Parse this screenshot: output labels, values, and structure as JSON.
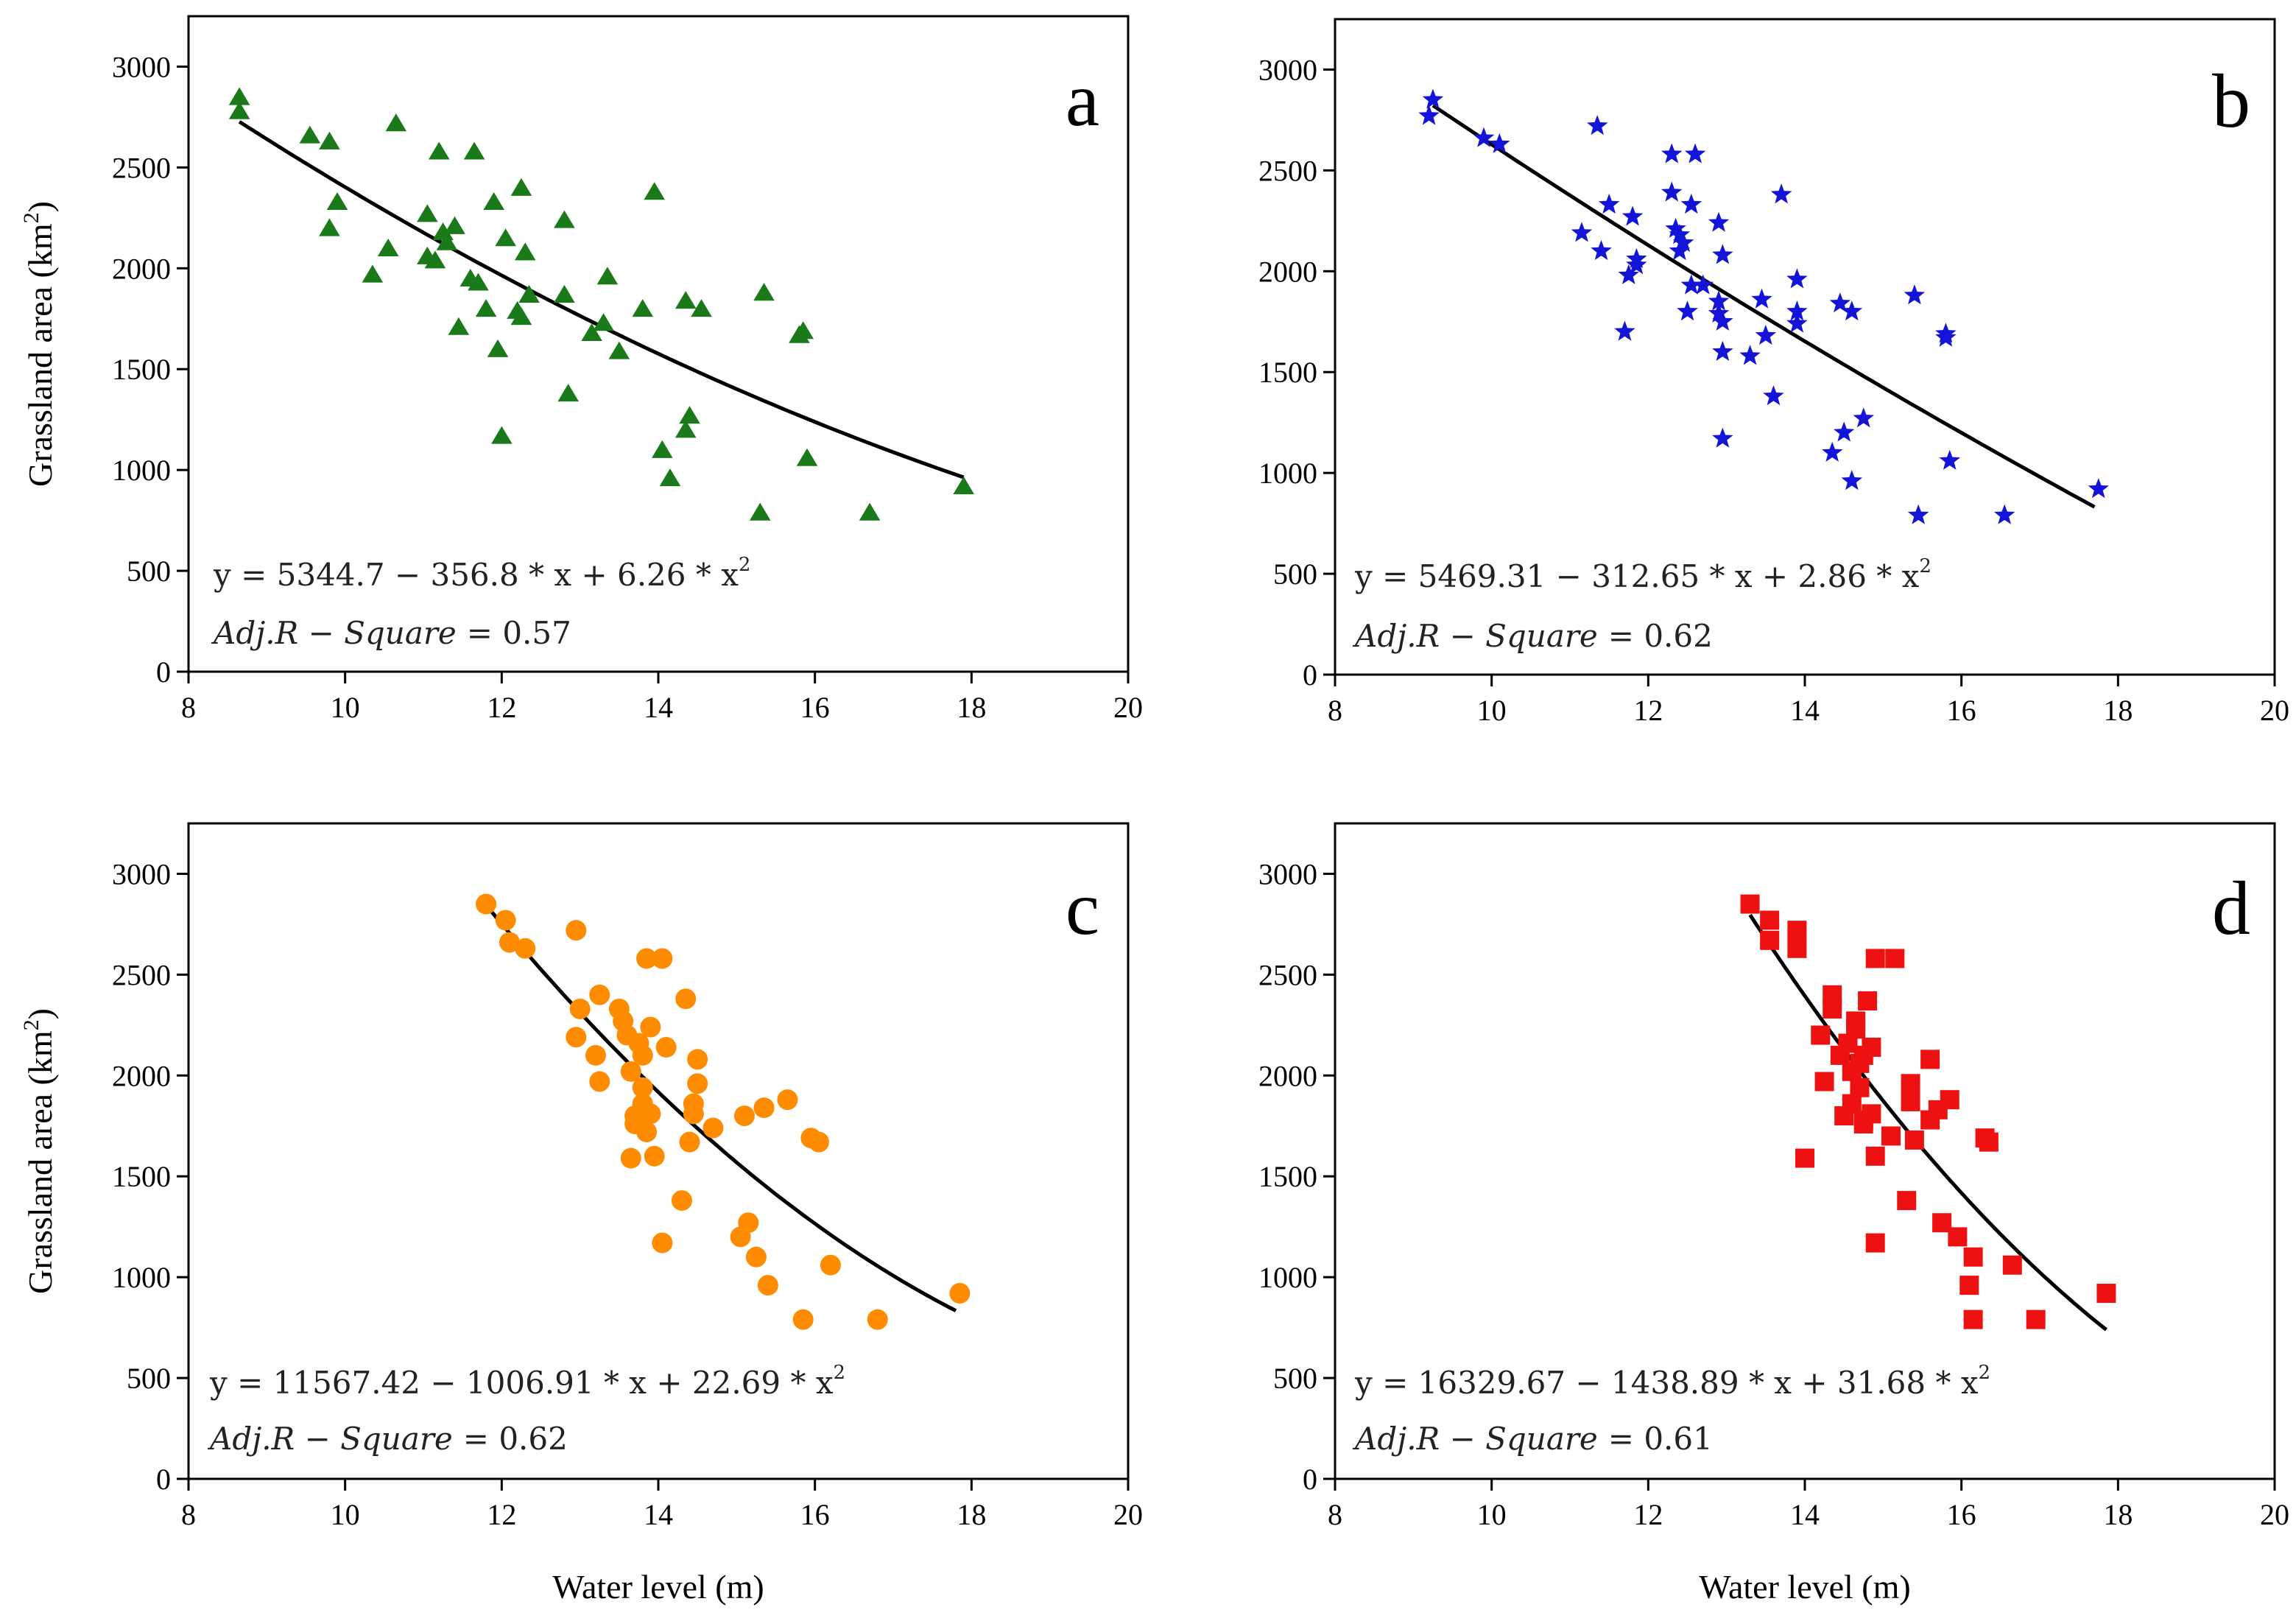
{
  "figure": {
    "y_axis_title": "Grassland area (km",
    "y_axis_title_sup": "2",
    "y_axis_title_close": ")",
    "x_axis_title": "Water level (m)"
  },
  "chart_data": [
    {
      "type": "scatter",
      "panel": "a",
      "marker": "triangle",
      "color": "#1a7a1a",
      "xlim": [
        8,
        20
      ],
      "ylim": [
        0,
        3250
      ],
      "xticks": [
        "8",
        "10",
        "12",
        "14",
        "16",
        "18",
        "20"
      ],
      "yticks": [
        "0",
        "500",
        "1000",
        "1500",
        "2000",
        "2500",
        "3000"
      ],
      "xlabel": "Water level (m)",
      "ylabel": "Grassland area (km2)",
      "equation": "y = 5344.7 − 356.8 * x + 6.26 * x",
      "equation_sup": "2",
      "adj_r2_label": "Adj.R − Square",
      "adj_r2_value": "= 0.57",
      "fit": {
        "a": 5344.7,
        "b": -356.8,
        "c": 6.26,
        "x_range": [
          8.65,
          17.9
        ]
      },
      "points": [
        [
          8.65,
          2850
        ],
        [
          8.65,
          2780
        ],
        [
          9.55,
          2660
        ],
        [
          9.8,
          2630
        ],
        [
          9.8,
          2200
        ],
        [
          9.9,
          2330
        ],
        [
          10.35,
          1970
        ],
        [
          10.55,
          2100
        ],
        [
          10.65,
          2720
        ],
        [
          11.05,
          2270
        ],
        [
          11.05,
          2060
        ],
        [
          11.15,
          2040
        ],
        [
          11.2,
          2580
        ],
        [
          11.25,
          2180
        ],
        [
          11.3,
          2130
        ],
        [
          11.4,
          2210
        ],
        [
          11.45,
          1710
        ],
        [
          11.6,
          1950
        ],
        [
          11.65,
          2580
        ],
        [
          11.7,
          1930
        ],
        [
          11.8,
          1800
        ],
        [
          11.9,
          2330
        ],
        [
          11.95,
          1600
        ],
        [
          12.0,
          1170
        ],
        [
          12.05,
          2150
        ],
        [
          12.2,
          1790
        ],
        [
          12.25,
          2400
        ],
        [
          12.25,
          1760
        ],
        [
          12.3,
          2080
        ],
        [
          12.35,
          1870
        ],
        [
          12.8,
          2240
        ],
        [
          12.8,
          1870
        ],
        [
          12.85,
          1380
        ],
        [
          13.15,
          1680
        ],
        [
          13.3,
          1730
        ],
        [
          13.35,
          1960
        ],
        [
          13.5,
          1590
        ],
        [
          13.8,
          1800
        ],
        [
          13.95,
          2380
        ],
        [
          14.05,
          1100
        ],
        [
          14.15,
          960
        ],
        [
          14.35,
          1840
        ],
        [
          14.35,
          1200
        ],
        [
          14.4,
          1270
        ],
        [
          14.55,
          1800
        ],
        [
          15.35,
          1880
        ],
        [
          15.3,
          790
        ],
        [
          15.8,
          1670
        ],
        [
          15.85,
          1690
        ],
        [
          15.9,
          1060
        ],
        [
          16.7,
          790
        ],
        [
          17.9,
          920
        ]
      ]
    },
    {
      "type": "scatter",
      "panel": "b",
      "marker": "star",
      "color": "#1414d8",
      "xlim": [
        8,
        20
      ],
      "ylim": [
        0,
        3250
      ],
      "xticks": [
        "8",
        "10",
        "12",
        "14",
        "16",
        "18",
        "20"
      ],
      "yticks": [
        "0",
        "500",
        "1000",
        "1500",
        "2000",
        "2500",
        "3000"
      ],
      "xlabel": "Water level (m)",
      "ylabel": "Grassland area (km2)",
      "equation": "y = 5469.31 − 312.65 * x + 2.86 * x",
      "equation_sup": "2",
      "adj_r2_label": "Adj.R − Square",
      "adj_r2_value": "= 0.62",
      "fit": {
        "a": 5469.31,
        "b": -312.65,
        "c": 2.86,
        "x_range": [
          9.25,
          17.7
        ]
      },
      "points": [
        [
          9.25,
          2850
        ],
        [
          9.2,
          2770
        ],
        [
          9.9,
          2660
        ],
        [
          10.1,
          2630
        ],
        [
          11.15,
          2190
        ],
        [
          11.35,
          2720
        ],
        [
          11.4,
          2100
        ],
        [
          11.5,
          2330
        ],
        [
          11.7,
          1700
        ],
        [
          11.75,
          1980
        ],
        [
          11.8,
          2270
        ],
        [
          11.85,
          2030
        ],
        [
          11.85,
          2060
        ],
        [
          12.3,
          2580
        ],
        [
          12.3,
          2390
        ],
        [
          12.35,
          2210
        ],
        [
          12.4,
          2180
        ],
        [
          12.4,
          2100
        ],
        [
          12.45,
          2140
        ],
        [
          12.5,
          1800
        ],
        [
          12.55,
          2330
        ],
        [
          12.55,
          1930
        ],
        [
          12.6,
          2580
        ],
        [
          12.7,
          1930
        ],
        [
          12.9,
          2240
        ],
        [
          12.9,
          1850
        ],
        [
          12.9,
          1790
        ],
        [
          12.95,
          1750
        ],
        [
          12.95,
          1600
        ],
        [
          12.95,
          1170
        ],
        [
          12.95,
          2080
        ],
        [
          13.3,
          1580
        ],
        [
          13.45,
          1860
        ],
        [
          13.5,
          1680
        ],
        [
          13.6,
          1380
        ],
        [
          13.7,
          2380
        ],
        [
          13.9,
          1960
        ],
        [
          13.9,
          1800
        ],
        [
          13.9,
          1740
        ],
        [
          14.35,
          1100
        ],
        [
          14.45,
          1840
        ],
        [
          14.5,
          1200
        ],
        [
          14.6,
          1800
        ],
        [
          14.6,
          960
        ],
        [
          14.75,
          1270
        ],
        [
          15.4,
          1880
        ],
        [
          15.45,
          790
        ],
        [
          15.8,
          1670
        ],
        [
          15.8,
          1690
        ],
        [
          15.85,
          1060
        ],
        [
          16.55,
          790
        ],
        [
          17.75,
          920
        ]
      ]
    },
    {
      "type": "scatter",
      "panel": "c",
      "marker": "circle",
      "color": "#ff8c00",
      "xlim": [
        8,
        20
      ],
      "ylim": [
        0,
        3250
      ],
      "xticks": [
        "8",
        "10",
        "12",
        "14",
        "16",
        "18",
        "20"
      ],
      "yticks": [
        "0",
        "500",
        "1000",
        "1500",
        "2000",
        "2500",
        "3000"
      ],
      "xlabel": "Water level (m)",
      "ylabel": "Grassland area (km2)",
      "equation": "y = 11567.42 − 1006.91 * x + 22.69 * x",
      "equation_sup": "2",
      "adj_r2_label": "Adj.R − Square",
      "adj_r2_value": "= 0.62",
      "fit": {
        "a": 11567.42,
        "b": -1006.91,
        "c": 22.69,
        "x_range": [
          11.8,
          17.8
        ]
      },
      "points": [
        [
          11.8,
          2850
        ],
        [
          12.05,
          2770
        ],
        [
          12.1,
          2660
        ],
        [
          12.3,
          2630
        ],
        [
          12.95,
          2720
        ],
        [
          12.95,
          2190
        ],
        [
          13.0,
          2330
        ],
        [
          13.2,
          2100
        ],
        [
          13.25,
          1970
        ],
        [
          13.25,
          2400
        ],
        [
          13.5,
          2330
        ],
        [
          13.55,
          2270
        ],
        [
          13.6,
          2200
        ],
        [
          13.65,
          1590
        ],
        [
          13.65,
          2020
        ],
        [
          13.7,
          1800
        ],
        [
          13.7,
          1760
        ],
        [
          13.75,
          2160
        ],
        [
          13.8,
          2100
        ],
        [
          13.8,
          1860
        ],
        [
          13.8,
          1940
        ],
        [
          13.85,
          1720
        ],
        [
          13.85,
          2580
        ],
        [
          13.9,
          2240
        ],
        [
          13.9,
          1810
        ],
        [
          13.95,
          1600
        ],
        [
          14.05,
          1170
        ],
        [
          14.05,
          2580
        ],
        [
          14.1,
          2140
        ],
        [
          14.3,
          1380
        ],
        [
          14.35,
          2380
        ],
        [
          14.4,
          1670
        ],
        [
          14.45,
          1860
        ],
        [
          14.45,
          1810
        ],
        [
          14.5,
          2080
        ],
        [
          14.5,
          1960
        ],
        [
          14.7,
          1740
        ],
        [
          15.05,
          1200
        ],
        [
          15.1,
          1800
        ],
        [
          15.15,
          1270
        ],
        [
          15.25,
          1100
        ],
        [
          15.35,
          1840
        ],
        [
          15.4,
          960
        ],
        [
          15.65,
          1880
        ],
        [
          15.85,
          790
        ],
        [
          15.95,
          1690
        ],
        [
          16.05,
          1670
        ],
        [
          16.2,
          1060
        ],
        [
          16.8,
          790
        ],
        [
          17.85,
          920
        ]
      ]
    },
    {
      "type": "scatter",
      "panel": "d",
      "marker": "square",
      "color": "#ee1111",
      "xlim": [
        8,
        20
      ],
      "ylim": [
        0,
        3250
      ],
      "xticks": [
        "8",
        "10",
        "12",
        "14",
        "16",
        "18",
        "20"
      ],
      "yticks": [
        "0",
        "500",
        "1000",
        "1500",
        "2000",
        "2500",
        "3000"
      ],
      "xlabel": "Water level (m)",
      "ylabel": "Grassland area (km2)",
      "equation": "y = 16329.67 − 1438.89 * x + 31.68 * x",
      "equation_sup": "2",
      "adj_r2_label": "Adj.R − Square",
      "adj_r2_value": "= 0.61",
      "fit": {
        "a": 16329.67,
        "b": -1438.89,
        "c": 31.68,
        "x_range": [
          13.3,
          17.85
        ]
      },
      "points": [
        [
          13.3,
          2850
        ],
        [
          13.55,
          2770
        ],
        [
          13.55,
          2670
        ],
        [
          13.9,
          2720
        ],
        [
          13.9,
          2630
        ],
        [
          14.0,
          1590
        ],
        [
          14.2,
          2200
        ],
        [
          14.25,
          1970
        ],
        [
          14.35,
          2400
        ],
        [
          14.35,
          2330
        ],
        [
          14.45,
          2100
        ],
        [
          14.5,
          1800
        ],
        [
          14.55,
          2160
        ],
        [
          14.6,
          2020
        ],
        [
          14.6,
          1860
        ],
        [
          14.65,
          2270
        ],
        [
          14.65,
          2230
        ],
        [
          14.7,
          1940
        ],
        [
          14.7,
          2060
        ],
        [
          14.75,
          1760
        ],
        [
          14.75,
          1780
        ],
        [
          14.75,
          2100
        ],
        [
          14.8,
          2370
        ],
        [
          14.85,
          1810
        ],
        [
          14.85,
          2140
        ],
        [
          14.9,
          2580
        ],
        [
          14.9,
          1600
        ],
        [
          14.9,
          1170
        ],
        [
          15.1,
          1700
        ],
        [
          15.15,
          2580
        ],
        [
          15.3,
          1380
        ],
        [
          15.35,
          1960
        ],
        [
          15.35,
          1870
        ],
        [
          15.4,
          1680
        ],
        [
          15.6,
          2080
        ],
        [
          15.6,
          1780
        ],
        [
          15.7,
          1830
        ],
        [
          15.75,
          1270
        ],
        [
          15.85,
          1880
        ],
        [
          15.95,
          1200
        ],
        [
          16.1,
          960
        ],
        [
          16.15,
          1100
        ],
        [
          16.15,
          790
        ],
        [
          16.3,
          1690
        ],
        [
          16.35,
          1670
        ],
        [
          16.65,
          1060
        ],
        [
          16.95,
          790
        ],
        [
          17.85,
          920
        ]
      ]
    }
  ]
}
